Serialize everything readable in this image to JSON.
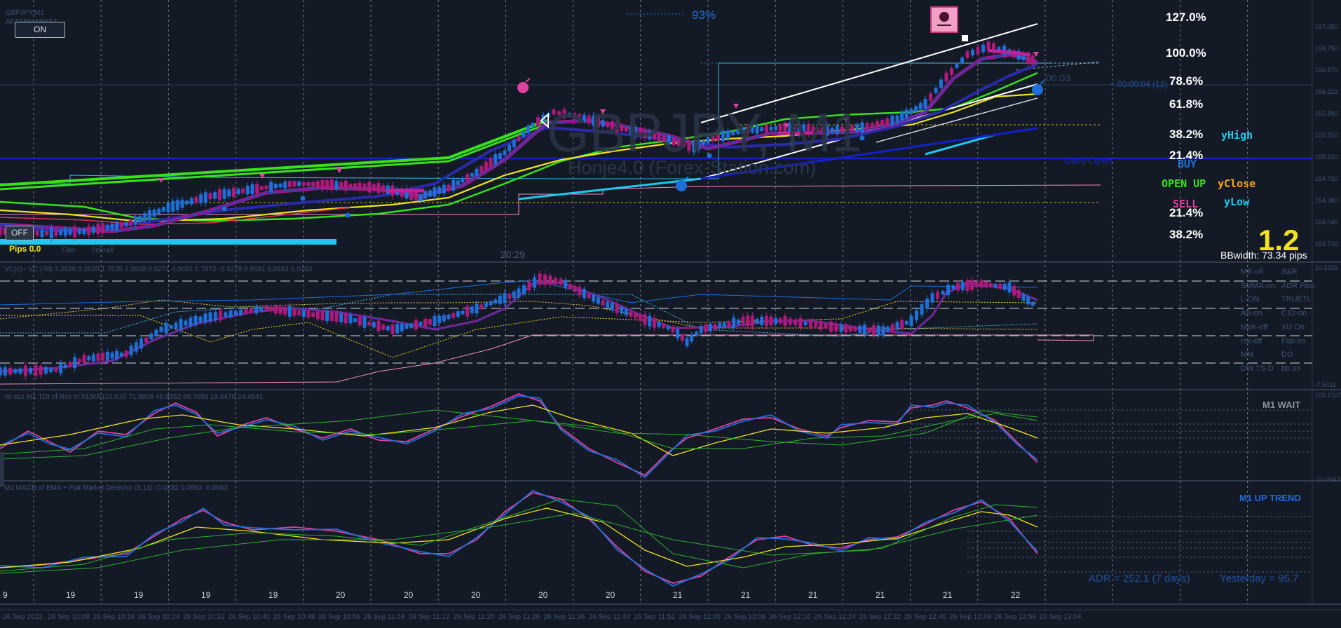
{
  "chart": {
    "symbol_watermark": "GBPJPY, M1",
    "watermark_sub": "Honje4.0 (Forex-Station.com)",
    "on_button": "ON",
    "off_button": "OFF",
    "pips": "Pips 0.0",
    "top_label_1": "GBPJPY,M1",
    "top_label_2": "AFTERMARKET",
    "top_percent": "93%",
    "countdown_right": "<-00:00:04 (12)",
    "countdown_small": "00:03",
    "time_marker": "20:29",
    "fibo_tab": "Fibo",
    "sema_tab": "Sema4",
    "daily_label": "Daily Open",
    "big_number": "1.2",
    "bb_width": "BBwidth: 73.34 pips"
  },
  "fib_levels": {
    "l127": "127.0%",
    "l100": "100.0%",
    "l786": "78.6%",
    "l618": "61.8%",
    "l382": "38.2%",
    "l214": "21.4%",
    "l214b": "21.4%",
    "l382b": "38.2%"
  },
  "signals": {
    "buy": "BUY",
    "open_up": "OPEN UP",
    "sell": "SELL",
    "y_high": "yHigh",
    "y_close": "yClose",
    "y_low": "yLow"
  },
  "price_axis": [
    "157.050",
    "156.750",
    "156.570",
    "156.222",
    "155.890",
    "155.550",
    "155.210",
    "154.720",
    "154.380",
    "154.040",
    "153.710"
  ],
  "vc_panel": {
    "title": "VC(c) - VC (70) 3.2620 3.2620 1.7635 2.2800 6.8271 4.0651 1.7972 -0.4279 0.9691 5.0163 5.0163",
    "axis_top": "10.3326",
    "axis_bottom": "-7.5411",
    "menu": [
      "MB-off",
      "S&R",
      "SMMA-on",
      "ADR Fibo",
      "L-ON",
      "TRUETL",
      "AS-on",
      "C12-on",
      "MaK-off",
      "XU On",
      "rsx-off",
      "Flat-on",
      "MM",
      "DO",
      "DW TS-D",
      "bb on"
    ]
  },
  "tdi_panel": {
    "title": "rsi sb1 M1 TDI of Rsx of NLMA (10,0,0) 71.9868 48.8652 69.7058 19.6479 24.4541",
    "status": "M1 WAIT",
    "axis_top": "100.2107",
    "axis_bottom": "-10.0943"
  },
  "macd_panel": {
    "title": "M1 MACD of EMA + Flat Market Detector (8,13) -0.0332 0.0663 -0.0663",
    "status": "M1 UP TREND",
    "adr": "ADR = 252.1  (7 days)",
    "yesterday": "Yesterday = 95.7"
  },
  "day_labels": [
    "9",
    "19",
    "19",
    "19",
    "19",
    "20",
    "20",
    "20",
    "20",
    "20",
    "21",
    "21",
    "21",
    "21",
    "21",
    "22"
  ],
  "time_labels": [
    "26 Sep 2022",
    "26 Sep 10:08",
    "26 Sep 10:16",
    "26 Sep 10:24",
    "26 Sep 10:32",
    "26 Sep 10:40",
    "26 Sep 10:48",
    "26 Sep 10:56",
    "26 Sep 11:04",
    "26 Sep 11:12",
    "26 Sep 11:20",
    "26 Sep 11:28",
    "26 Sep 11:36",
    "26 Sep 11:44",
    "26 Sep 11:52",
    "26 Sep 12:00",
    "26 Sep 12:08",
    "26 Sep 12:16",
    "26 Sep 12:24",
    "26 Sep 12:32",
    "26 Sep 12:40",
    "26 Sep 12:48",
    "26 Sep 12:56",
    "26 Sep 13:04"
  ],
  "colors": {
    "background": "#131a26",
    "grid": "#c8cdd6",
    "bull": "#1e6fd9",
    "bear": "#b0187a",
    "green": "#37e11b",
    "yellow": "#f2e31c",
    "cyan": "#1ec8f0",
    "blue_line": "#1420c8",
    "pink": "#f08cc0",
    "white": "#ffffff"
  }
}
